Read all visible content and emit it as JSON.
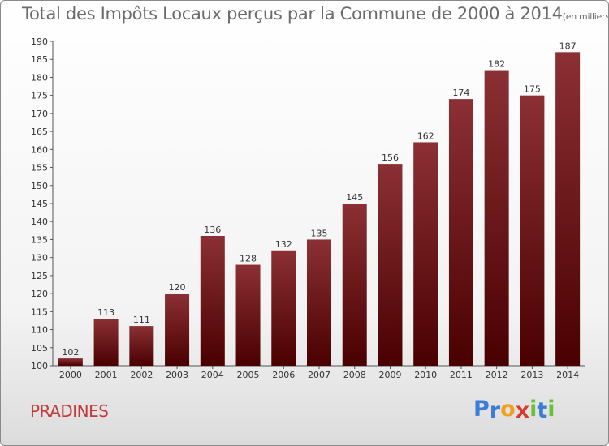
{
  "title": "Total des Impôts Locaux perçus par la Commune de 2000 à 2014",
  "title_unit": "(en milliers d'€)",
  "commune": "PRADINES",
  "logo": {
    "letters": [
      "P",
      "r",
      "o",
      "x",
      "i",
      "t",
      "i"
    ],
    "colors": [
      "#3b7dd8",
      "#3b7dd8",
      "#f0a01e",
      "#d93a2c",
      "#6cbf3a",
      "#3b7dd8",
      "#6cbf3a"
    ]
  },
  "colors": {
    "bar_top": "#8b3035",
    "bar_bottom": "#4a0000",
    "title": "#6b6b6b",
    "commune": "#c23a3a"
  },
  "chart_data": {
    "type": "bar",
    "title": "Total des Impôts Locaux perçus par la Commune de 2000 à 2014",
    "categories": [
      "2000",
      "2001",
      "2002",
      "2003",
      "2004",
      "2005",
      "2006",
      "2007",
      "2008",
      "2009",
      "2010",
      "2011",
      "2012",
      "2013",
      "2014"
    ],
    "values": [
      102,
      113,
      111,
      120,
      136,
      128,
      132,
      135,
      145,
      156,
      162,
      174,
      182,
      175,
      187
    ],
    "ylim": [
      100,
      190
    ],
    "yticks": [
      100,
      105,
      110,
      115,
      120,
      125,
      130,
      135,
      140,
      145,
      150,
      155,
      160,
      165,
      170,
      175,
      180,
      185,
      190
    ],
    "grid": false,
    "legend": "none"
  }
}
